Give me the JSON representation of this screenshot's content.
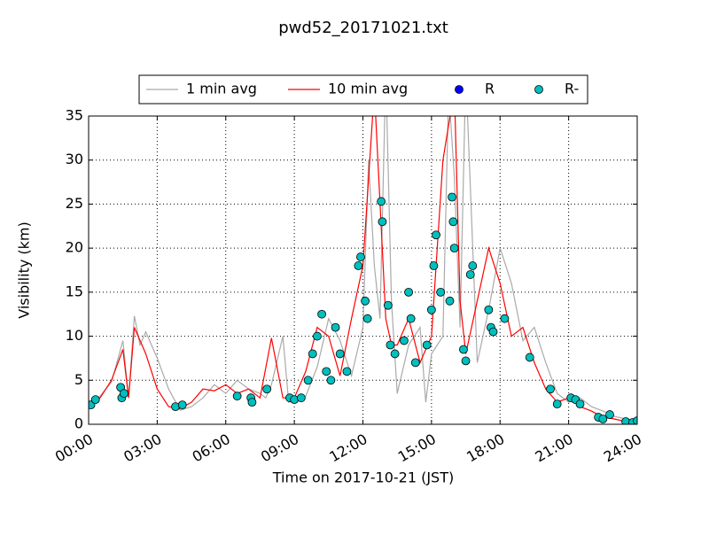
{
  "chart_data": {
    "type": "line",
    "title": "pwd52_20171021.txt",
    "x_label": "Time on 2017-10-21 (JST)",
    "y_label": "Visibility (km)",
    "xlim": [
      0,
      24
    ],
    "xticks": [
      {
        "value": 0,
        "label": "00:00"
      },
      {
        "value": 3,
        "label": "03:00"
      },
      {
        "value": 6,
        "label": "06:00"
      },
      {
        "value": 9,
        "label": "09:00"
      },
      {
        "value": 12,
        "label": "12:00"
      },
      {
        "value": 15,
        "label": "15:00"
      },
      {
        "value": 18,
        "label": "18:00"
      },
      {
        "value": 21,
        "label": "21:00"
      },
      {
        "value": 24,
        "label": "24:00"
      }
    ],
    "ylim": [
      0,
      35
    ],
    "yticks": [
      0,
      5,
      10,
      15,
      20,
      25,
      30,
      35
    ],
    "grid": true,
    "legend": "top",
    "series": [
      {
        "name": "1 min avg",
        "type": "line",
        "color": "#aaaaaa",
        "x": [
          0,
          0.5,
          1,
          1.5,
          1.75,
          2,
          2.25,
          2.5,
          3,
          3.5,
          4,
          4.5,
          5,
          5.5,
          6,
          6.5,
          7,
          7.5,
          7.75,
          8,
          8.5,
          8.75,
          9,
          9.5,
          10,
          10.5,
          11,
          11.5,
          12,
          12.25,
          12.5,
          12.75,
          13,
          13.25,
          13.5,
          14,
          14.5,
          14.75,
          15,
          15.5,
          15.75,
          16,
          16.25,
          16.5,
          17,
          17.5,
          18,
          18.5,
          19,
          19.5,
          20,
          20.5,
          21,
          21.5,
          22,
          22.5,
          23,
          23.5,
          24
        ],
        "values": [
          2,
          3.2,
          4.8,
          9.5,
          3,
          12.3,
          9,
          10.5,
          7.5,
          4,
          1.6,
          2,
          3,
          4.5,
          3.5,
          5,
          4,
          3.5,
          3,
          4.5,
          10,
          2.5,
          3,
          3.2,
          6.5,
          12,
          9.5,
          5.5,
          11,
          30,
          18,
          12,
          40,
          14,
          3.5,
          9,
          11,
          2.5,
          8,
          10,
          38,
          28,
          11,
          40,
          7,
          13,
          20,
          16,
          9.5,
          11,
          7,
          3.5,
          2.5,
          3,
          2,
          1.5,
          0.9,
          0.6,
          0.2
        ]
      },
      {
        "name": "10 min avg",
        "type": "line",
        "color": "#ff0000",
        "x": [
          0,
          0.5,
          1,
          1.5,
          1.75,
          2,
          2.5,
          3,
          3.5,
          4,
          4.5,
          5,
          5.5,
          6,
          6.5,
          7,
          7.5,
          8,
          8.5,
          8.75,
          9,
          9.5,
          10,
          10.5,
          11,
          11.5,
          12,
          12.5,
          13,
          13.25,
          13.5,
          14,
          14.5,
          15,
          15.5,
          16,
          16.25,
          16.5,
          17,
          17.5,
          18,
          18.5,
          19,
          19.5,
          20,
          20.5,
          21,
          21.5,
          22,
          22.5,
          23,
          23.5,
          24
        ],
        "values": [
          2.2,
          3,
          5,
          8.5,
          3,
          11,
          8,
          4,
          2,
          1.8,
          2.5,
          4,
          3.8,
          4.5,
          3.5,
          4,
          3,
          9.8,
          3,
          3,
          3,
          6,
          11,
          10,
          5.5,
          12,
          18,
          38,
          12,
          9,
          9,
          12,
          7,
          10,
          30,
          38,
          14,
          8,
          14,
          20,
          16,
          10,
          11,
          7,
          4,
          2.5,
          3,
          2,
          1.5,
          0.8,
          0.6,
          0.3,
          0.3
        ]
      },
      {
        "name": "R",
        "type": "scatter",
        "color": "#0000ff",
        "x": [],
        "values": []
      },
      {
        "name": "R-",
        "type": "scatter",
        "color": "#00bfbf",
        "x": [
          0.1,
          0.3,
          1.4,
          1.45,
          1.55,
          3.8,
          4.1,
          6.5,
          7.1,
          7.15,
          7.8,
          8.8,
          9,
          9.3,
          9.6,
          9.8,
          10,
          10.2,
          10.4,
          10.6,
          10.8,
          11,
          11.3,
          11.8,
          11.9,
          12.1,
          12.2,
          12.8,
          12.85,
          13.1,
          13.2,
          13.4,
          13.8,
          14,
          14.1,
          14.3,
          14.8,
          15,
          15.1,
          15.2,
          15.4,
          15.8,
          15.9,
          15.95,
          16,
          16.4,
          16.5,
          16.7,
          16.8,
          17.5,
          17.6,
          17.7,
          18.2,
          19.3,
          20.2,
          20.5,
          21.1,
          21.3,
          21.5,
          22.3,
          22.5,
          22.8,
          23.5,
          23.8,
          24
        ],
        "values": [
          2.2,
          2.8,
          4.2,
          3,
          3.5,
          2,
          2.2,
          3.2,
          3,
          2.5,
          4,
          3,
          2.8,
          3,
          5,
          8,
          10,
          12.5,
          6,
          5,
          11,
          8,
          6,
          18,
          19,
          14,
          12,
          25.3,
          23,
          13.5,
          9,
          8,
          9.5,
          15,
          12,
          7,
          9,
          13,
          18,
          21.5,
          15,
          14,
          25.8,
          23,
          20,
          8.5,
          7.2,
          17,
          18,
          13,
          11,
          10.5,
          12,
          7.6,
          4,
          2.3,
          3,
          2.8,
          2.3,
          0.8,
          0.6,
          1.1,
          0.3,
          0.2,
          0.4
        ]
      }
    ]
  }
}
